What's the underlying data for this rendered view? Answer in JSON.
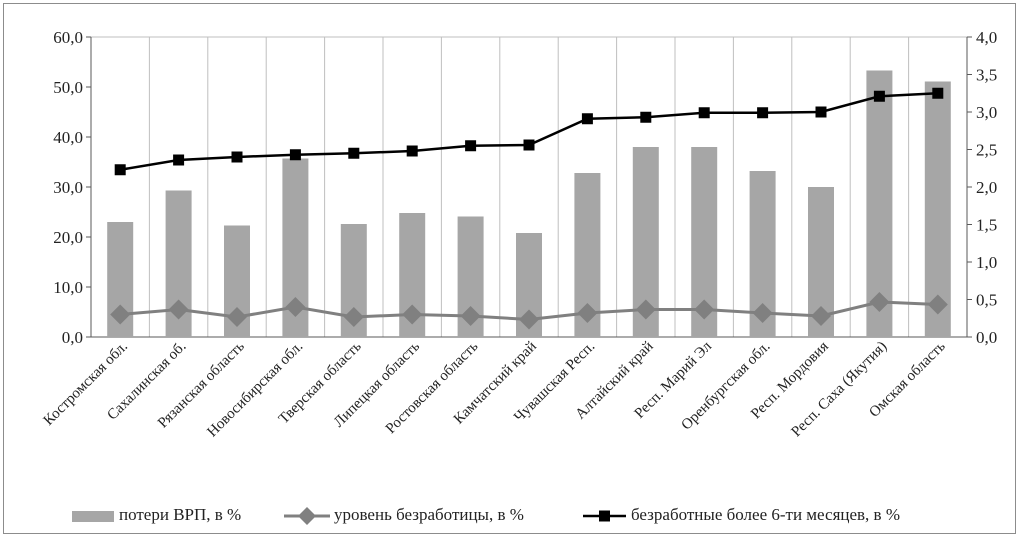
{
  "chart_data": {
    "type": "bar",
    "categories": [
      "Костромская обл.",
      "Сахалинская об.",
      "Рязанская область",
      "Новосибирская обл.",
      "Тверская область",
      "Липецкая область",
      "Ростовская область",
      "Камчатский край",
      "Чувашская Респ.",
      "Алтайский край",
      "Респ. Марий Эл",
      "Оренбургская обл.",
      "Респ. Мордовия",
      "Респ. Саха (Якутия)",
      "Омская область"
    ],
    "series": [
      {
        "name": "потери ВРП, в %",
        "type": "bar",
        "axis": "left",
        "color": "#a6a6a6",
        "values": [
          23.0,
          29.3,
          22.3,
          35.7,
          22.6,
          24.8,
          24.1,
          20.8,
          32.8,
          38.0,
          38.0,
          33.2,
          30.0,
          53.3,
          51.1
        ]
      },
      {
        "name": "уровень безработицы, в %",
        "type": "line",
        "marker": "diamond",
        "axis": "left",
        "color": "#808080",
        "values": [
          4.5,
          5.5,
          4.0,
          6.0,
          4.0,
          4.5,
          4.2,
          3.5,
          4.8,
          5.5,
          5.5,
          4.8,
          4.2,
          7.0,
          6.5
        ]
      },
      {
        "name": "безработные более 6-ти месяцев, в %",
        "type": "line",
        "marker": "square",
        "axis": "right",
        "color": "#000000",
        "values": [
          2.23,
          2.36,
          2.4,
          2.43,
          2.45,
          2.48,
          2.55,
          2.56,
          2.91,
          2.93,
          2.99,
          2.99,
          3.0,
          3.21,
          3.25
        ]
      }
    ],
    "y_left": {
      "ylim": [
        0,
        60
      ],
      "ticks": [
        "0,0",
        "10,0",
        "20,0",
        "30,0",
        "40,0",
        "50,0",
        "60,0"
      ]
    },
    "y_right": {
      "ylim": [
        0,
        4
      ],
      "ticks": [
        "0,0",
        "0,5",
        "1,0",
        "1,5",
        "2,0",
        "2,5",
        "3,0",
        "3,5",
        "4,0"
      ]
    },
    "grid": "vertical",
    "legend": "bottom",
    "title": "",
    "xlabel": "",
    "ylabel": ""
  }
}
